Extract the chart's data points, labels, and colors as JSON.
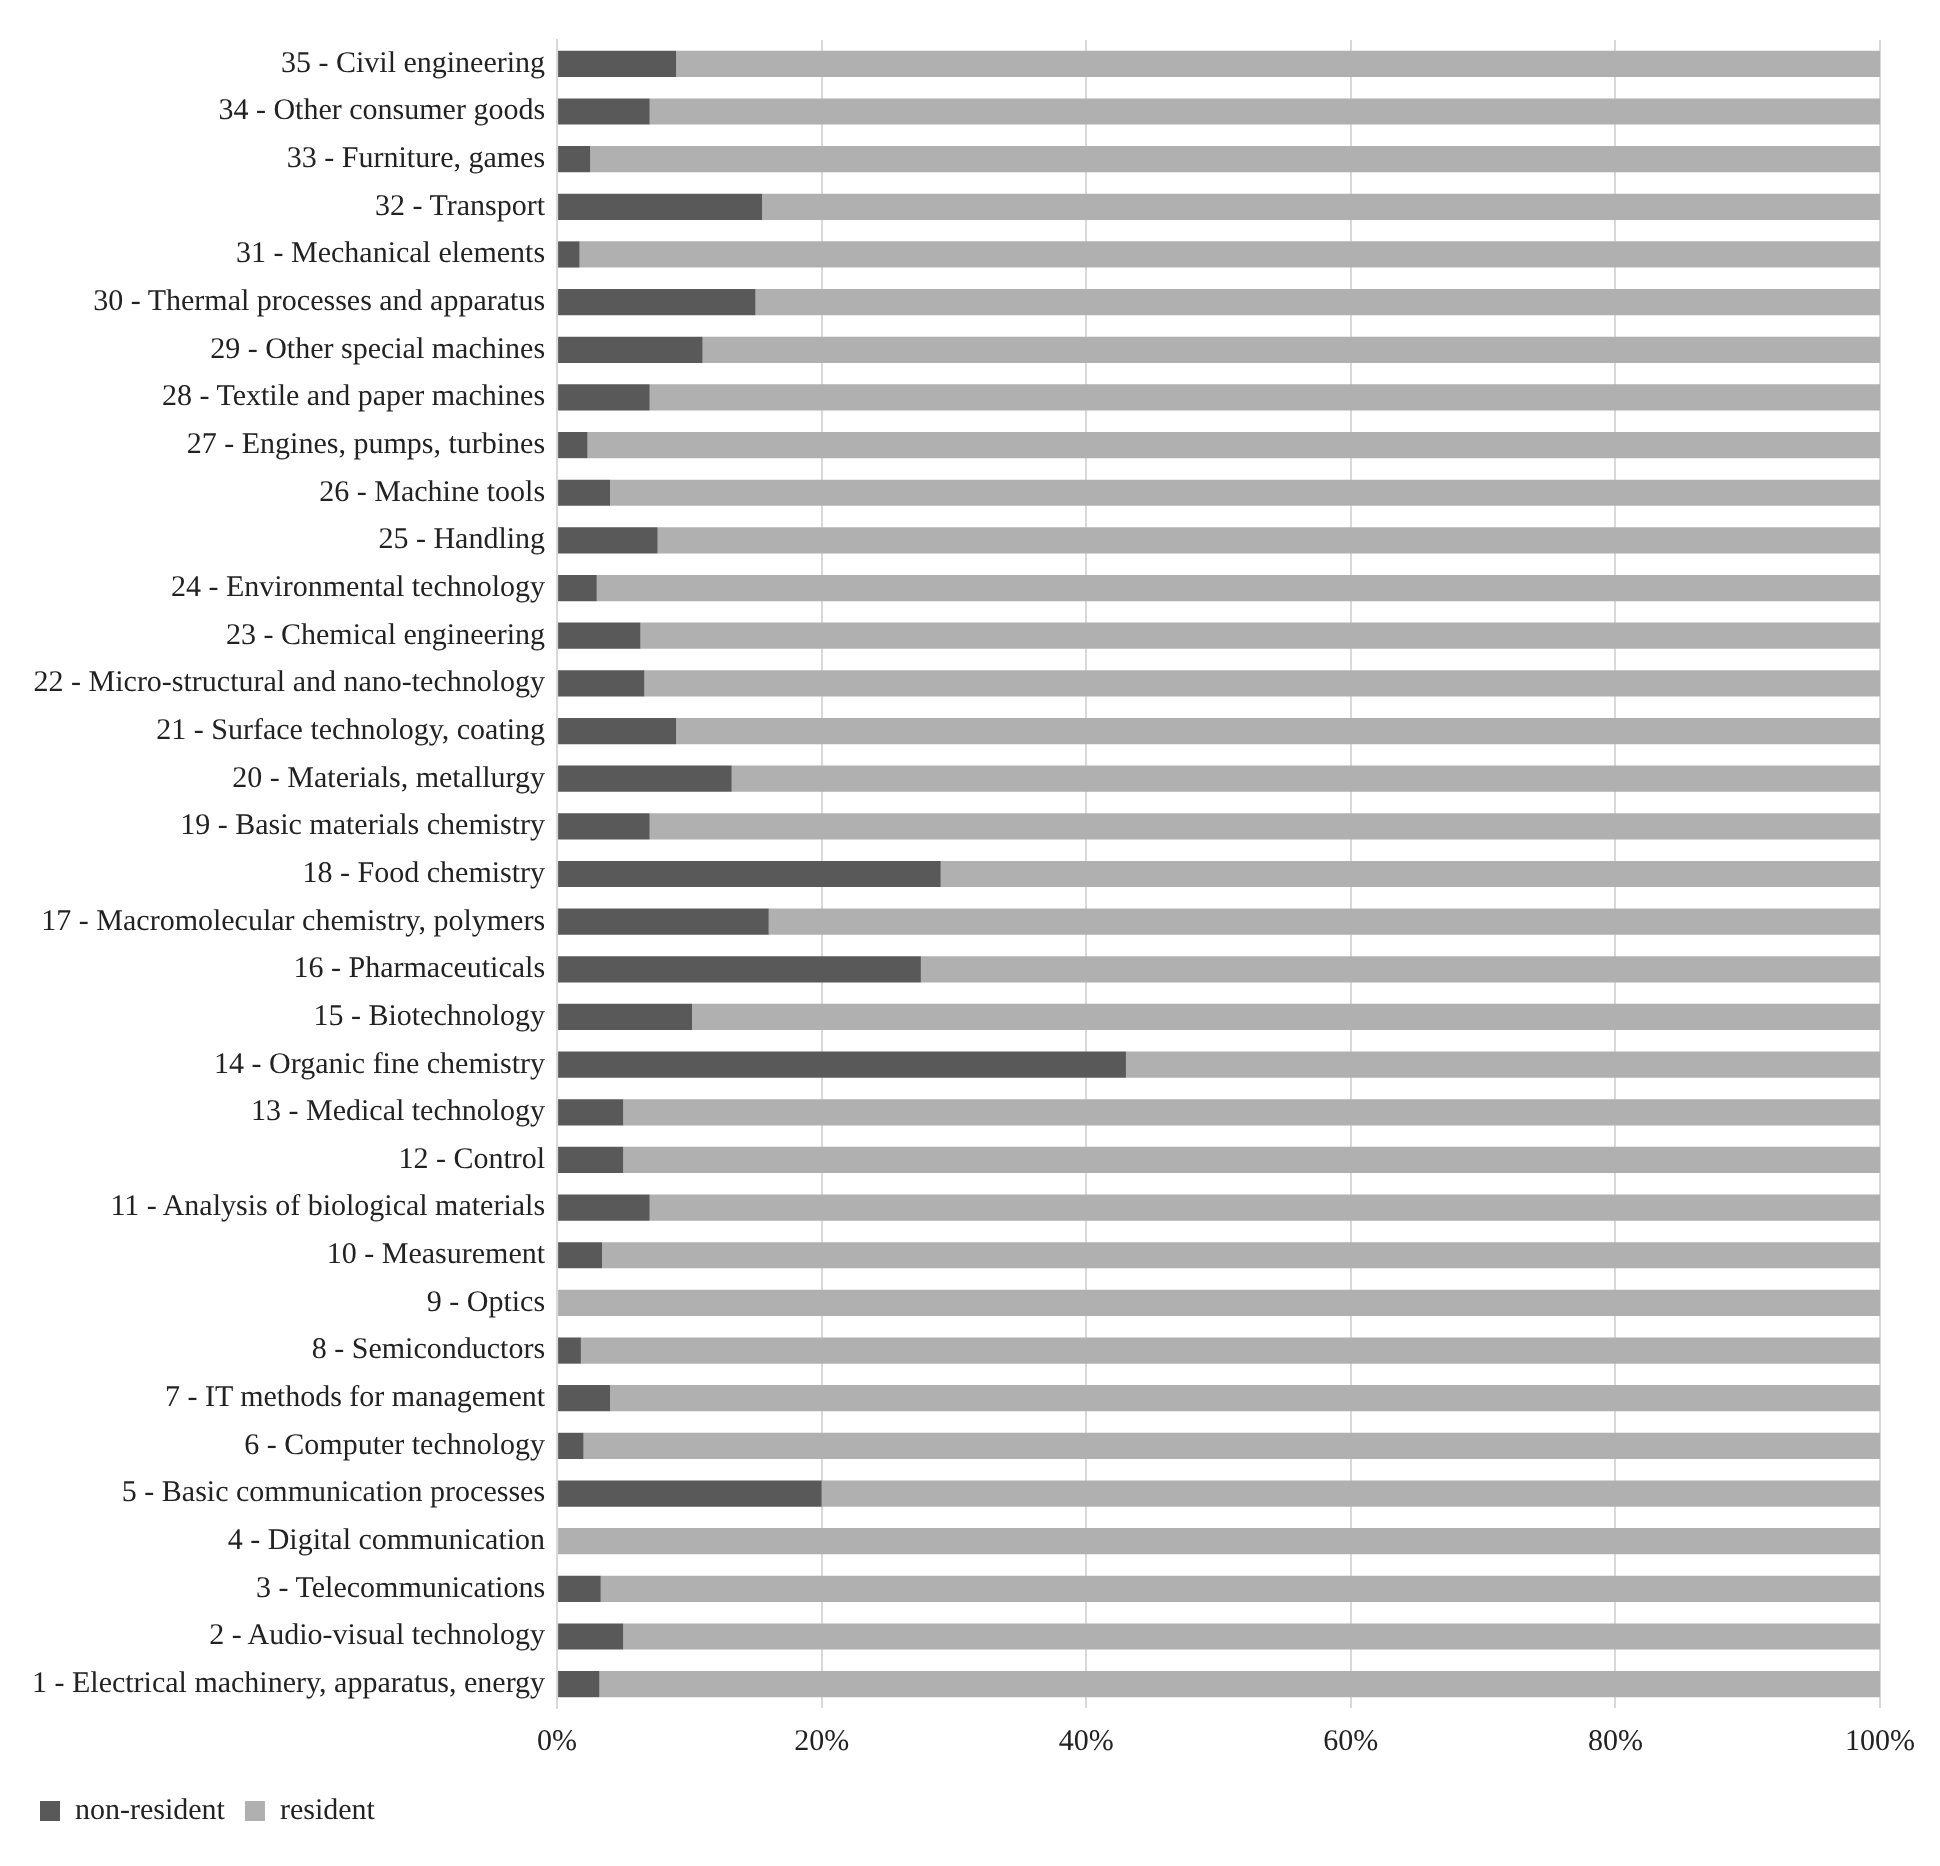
{
  "chart_data": {
    "type": "bar",
    "orientation": "horizontal",
    "stacked": true,
    "categories": [
      "35 - Civil engineering",
      "34 - Other consumer goods",
      "33 - Furniture, games",
      "32 - Transport",
      "31 - Mechanical elements",
      "30 - Thermal processes and apparatus",
      "29 - Other special machines",
      "28 - Textile and paper machines",
      "27 - Engines, pumps, turbines",
      "26 - Machine tools",
      "25 - Handling",
      "24 - Environmental technology",
      "23 - Chemical engineering",
      "22 - Micro-structural and nano-technology",
      "21 - Surface technology, coating",
      "20 - Materials, metallurgy",
      "19 - Basic materials chemistry",
      "18 - Food chemistry",
      "17 - Macromolecular chemistry, polymers",
      "16 - Pharmaceuticals",
      "15 - Biotechnology",
      "14 - Organic fine chemistry",
      "13 - Medical technology",
      "12 - Control",
      "11 - Analysis of biological materials",
      "10 - Measurement",
      "9 - Optics",
      "8 - Semiconductors",
      "7 - IT methods for management",
      "6 - Computer technology",
      "5 - Basic communication processes",
      "4 - Digital communication",
      "3 - Telecommunications",
      "2 - Audio-visual technology",
      "1 - Electrical machinery, apparatus, energy"
    ],
    "series": [
      {
        "name": "non-resident",
        "color": "#595959",
        "values": [
          9,
          7,
          2.5,
          15.5,
          1.7,
          15,
          11,
          7,
          2.3,
          4,
          7.6,
          3,
          6.3,
          6.6,
          9,
          13.2,
          7,
          29,
          16,
          27.5,
          10.2,
          43,
          5,
          5,
          7,
          3.4,
          0,
          1.8,
          4,
          2,
          20,
          0,
          3.3,
          5,
          3.2
        ]
      },
      {
        "name": "resident",
        "color": "#b0b0b0",
        "values": [
          91,
          93,
          97.5,
          84.5,
          98.3,
          85,
          89,
          93,
          97.7,
          96,
          92.4,
          97,
          93.7,
          93.4,
          91,
          86.8,
          93,
          71,
          84,
          72.5,
          89.8,
          57,
          95,
          95,
          93,
          96.6,
          100,
          98.2,
          96,
          98,
          80,
          100,
          96.7,
          95,
          96.8
        ]
      }
    ],
    "xlim": [
      0,
      100
    ],
    "xticks": [
      {
        "value": 0,
        "label": "0%"
      },
      {
        "value": 20,
        "label": "20%"
      },
      {
        "value": 40,
        "label": "40%"
      },
      {
        "value": 60,
        "label": "60%"
      },
      {
        "value": 80,
        "label": "80%"
      },
      {
        "value": 100,
        "label": "100%"
      }
    ],
    "grid": "x",
    "legend": "bottom"
  }
}
